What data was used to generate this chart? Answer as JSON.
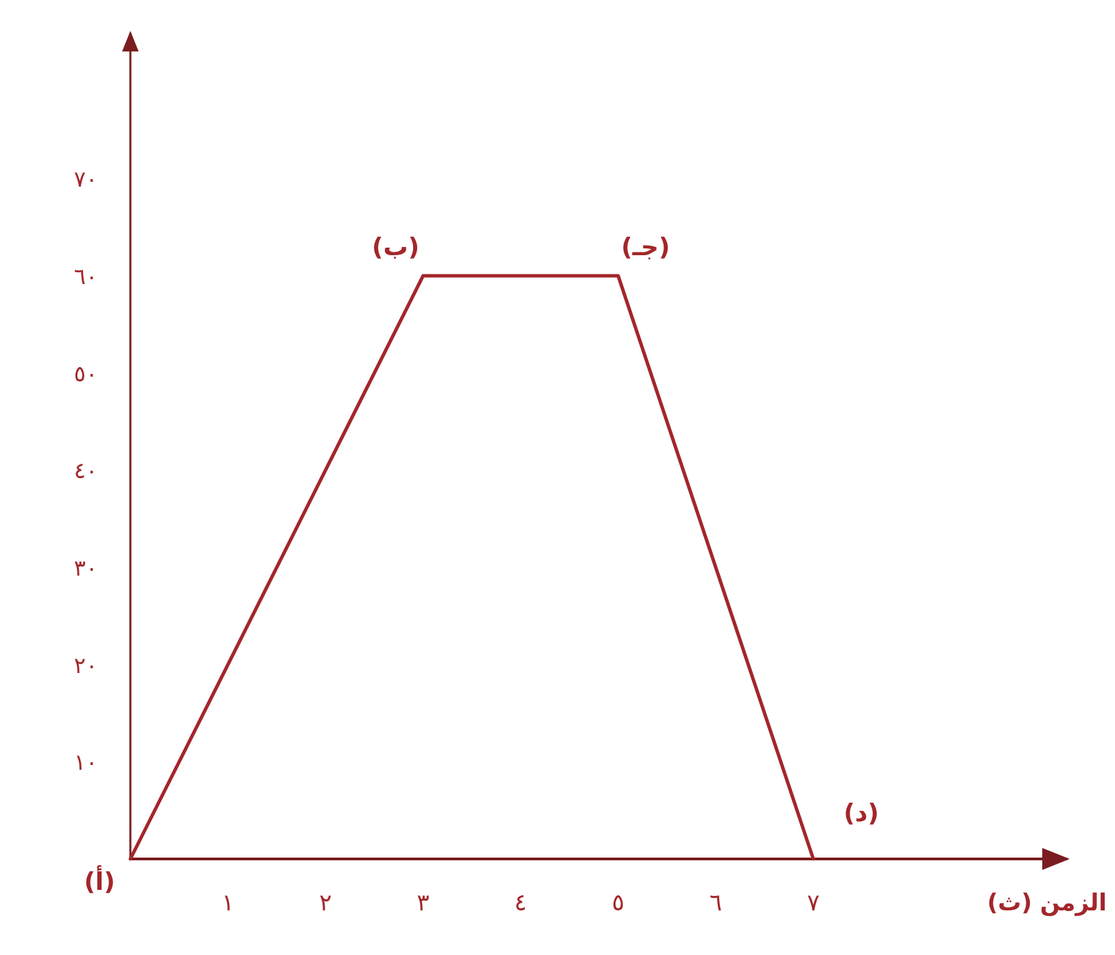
{
  "chart_data": {
    "type": "line",
    "xlabel": "الزمن (ث)",
    "x": [
      0,
      3,
      5,
      7
    ],
    "values": [
      0,
      60,
      60,
      0
    ],
    "color": "#a3262a",
    "xlim": [
      0,
      9.6
    ],
    "ylim": [
      0,
      85
    ],
    "xticks": [
      {
        "value": 1,
        "label": "١"
      },
      {
        "value": 2,
        "label": "٢"
      },
      {
        "value": 3,
        "label": "٣"
      },
      {
        "value": 4,
        "label": "٤"
      },
      {
        "value": 5,
        "label": "٥"
      },
      {
        "value": 6,
        "label": "٦"
      },
      {
        "value": 7,
        "label": "٧"
      }
    ],
    "yticks": [
      {
        "value": 10,
        "label": "١٠"
      },
      {
        "value": 20,
        "label": "٢٠"
      },
      {
        "value": 30,
        "label": "٣٠"
      },
      {
        "value": 40,
        "label": "٤٠"
      },
      {
        "value": 50,
        "label": "٥٠"
      },
      {
        "value": 60,
        "label": "٦٠"
      },
      {
        "value": 70,
        "label": "٧٠"
      }
    ],
    "annotations": [
      {
        "text": "(أ)",
        "x": 0,
        "y": 0
      },
      {
        "text": "(ب)",
        "x": 3,
        "y": 60
      },
      {
        "text": "(جـ)",
        "x": 5,
        "y": 60
      },
      {
        "text": "(د)",
        "x": 7,
        "y": 0
      }
    ]
  }
}
